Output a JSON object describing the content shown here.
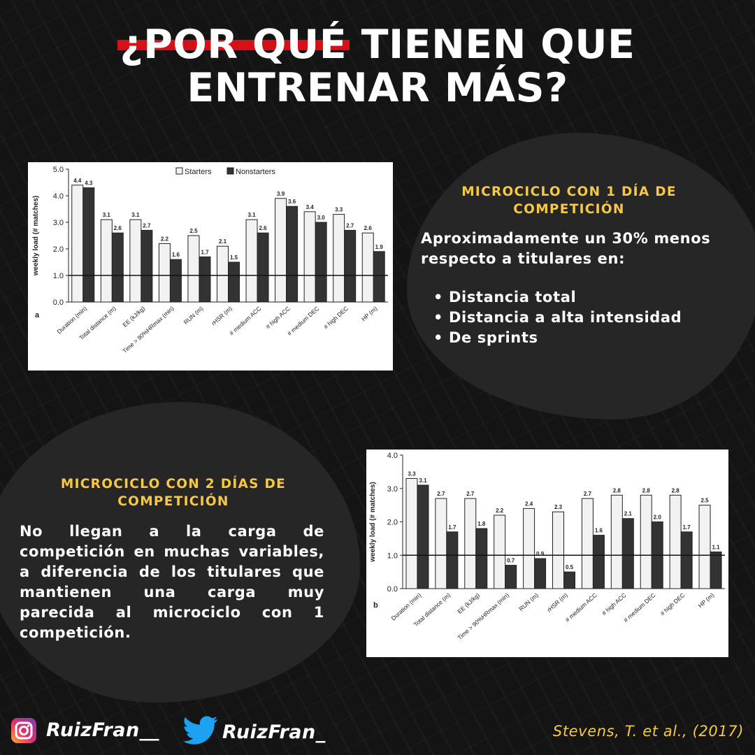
{
  "title": {
    "line1_highlight": "¿POR QUÉ",
    "line1_rest": " TIENEN QUE",
    "line2": "ENTRENAR MÁS?"
  },
  "colors": {
    "background": "#141414",
    "accent_yellow": "#f7c846",
    "highlight_red": "#d80f18",
    "starters": "#f2f2f2",
    "nonstarters": "#333333"
  },
  "section1": {
    "heading": "MICROCICLO CON 1 DÍA DE COMPETICIÓN",
    "text": "Aproximadamente un 30% menos respecto a titulares en:",
    "bullets": [
      "Distancia total",
      "Distancia a alta intensidad",
      "De sprints"
    ]
  },
  "section2": {
    "heading": "MICROCICLO CON 2 DÍAS DE COMPETICIÓN",
    "text": "No llegan a la carga de competición en muchas variables, a diferencia de los titulares que mantienen una carga muy parecida al microciclo con 1 competición."
  },
  "footer": {
    "instagram_handle": "RuizFran__",
    "twitter_handle": "RuizFran_",
    "citation": "Stevens, T. et al., (2017)",
    "icons": [
      "instagram-icon",
      "twitter-icon"
    ]
  },
  "chart_data": [
    {
      "type": "bar",
      "panel_label": "a",
      "ylabel": "weekly load (# matches)",
      "ylim": [
        0,
        5
      ],
      "yticks": [
        "0.0",
        "1.0",
        "2.0",
        "3.0",
        "4.0",
        "5.0"
      ],
      "reference_line": 1.0,
      "legend": [
        "Starters",
        "Nonstarters"
      ],
      "legend_position": "top",
      "categories": [
        "Duration (min)",
        "Total distance (m)",
        "EE (kJ/kg)",
        "Time > 90%HRmax (min)",
        "RUN (m)",
        "rHSR (m)",
        "# medium ACC",
        "# high ACC",
        "# medium DEC",
        "# high DEC",
        "HP (m)"
      ],
      "series": [
        {
          "name": "Starters",
          "values": [
            4.4,
            3.1,
            3.1,
            2.2,
            2.5,
            2.1,
            3.1,
            3.9,
            3.4,
            3.3,
            2.6
          ]
        },
        {
          "name": "Nonstarters",
          "values": [
            4.3,
            2.6,
            2.7,
            1.6,
            1.7,
            1.5,
            2.6,
            3.6,
            3.0,
            2.7,
            1.9
          ]
        }
      ]
    },
    {
      "type": "bar",
      "panel_label": "b",
      "ylabel": "weekly load (# matches)",
      "ylim": [
        0,
        4
      ],
      "yticks": [
        "0.0",
        "1.0",
        "2.0",
        "3.0",
        "4.0"
      ],
      "reference_line": 1.0,
      "categories": [
        "Duration (min)",
        "Total distance (m)",
        "EE (kJ/kg)",
        "Time > 90%HRmax (min)",
        "RUN (m)",
        "rHSR (m)",
        "# medium ACC",
        "# high ACC",
        "# medium DEC",
        "# high DEC",
        "HP (m)"
      ],
      "series": [
        {
          "name": "Starters",
          "values": [
            3.3,
            2.7,
            2.7,
            2.2,
            2.4,
            2.3,
            2.7,
            2.8,
            2.8,
            2.8,
            2.5
          ]
        },
        {
          "name": "Nonstarters",
          "values": [
            3.1,
            1.7,
            1.8,
            0.7,
            0.9,
            0.5,
            1.6,
            2.1,
            2.0,
            1.7,
            1.1
          ]
        }
      ]
    }
  ]
}
